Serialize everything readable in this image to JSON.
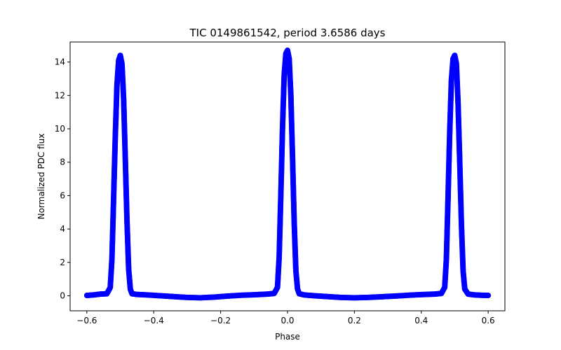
{
  "chart_data": {
    "type": "scatter",
    "title": "TIC 0149861542, period 3.6586 days",
    "xlabel": "Phase",
    "ylabel": "Normalized PDC flux",
    "xlim": [
      -0.65,
      0.65
    ],
    "ylim": [
      -0.9,
      15.2
    ],
    "x_ticks": [
      -0.6,
      -0.4,
      -0.2,
      0.0,
      0.2,
      0.4,
      0.6
    ],
    "x_tick_labels": [
      "−0.6",
      "−0.4",
      "−0.2",
      "0.0",
      "0.2",
      "0.4",
      "0.6"
    ],
    "y_ticks": [
      0,
      2,
      4,
      6,
      8,
      10,
      12,
      14
    ],
    "y_tick_labels": [
      "0",
      "2",
      "4",
      "6",
      "8",
      "10",
      "12",
      "14"
    ],
    "grid": false,
    "marker_color": "#0000ff",
    "series": [
      {
        "x": [
          -0.6,
          -0.58,
          -0.56,
          -0.54,
          -0.53,
          -0.525,
          -0.52,
          -0.515,
          -0.51,
          -0.505,
          -0.5,
          -0.495,
          -0.49,
          -0.485,
          -0.48,
          -0.475,
          -0.47,
          -0.465,
          -0.45,
          -0.42,
          -0.38,
          -0.34,
          -0.3,
          -0.26,
          -0.22,
          -0.18,
          -0.14,
          -0.1,
          -0.06,
          -0.04,
          -0.03,
          -0.025,
          -0.02,
          -0.015,
          -0.01,
          -0.005,
          0.0,
          0.005,
          0.01,
          0.015,
          0.02,
          0.025,
          0.03,
          0.035,
          0.05,
          0.08,
          0.12,
          0.16,
          0.2,
          0.24,
          0.28,
          0.32,
          0.36,
          0.4,
          0.44,
          0.46,
          0.47,
          0.475,
          0.48,
          0.485,
          0.49,
          0.495,
          0.5,
          0.505,
          0.51,
          0.515,
          0.52,
          0.525,
          0.53,
          0.54,
          0.56,
          0.58,
          0.6
        ],
        "y": [
          0.02,
          0.05,
          0.1,
          0.12,
          0.5,
          2.2,
          5.8,
          9.5,
          12.6,
          14.1,
          14.4,
          13.9,
          11.8,
          8.2,
          4.5,
          1.6,
          0.4,
          0.12,
          0.08,
          0.05,
          0.0,
          -0.05,
          -0.1,
          -0.12,
          -0.08,
          -0.02,
          0.03,
          0.06,
          0.1,
          0.14,
          0.5,
          2.3,
          6.0,
          10.0,
          13.2,
          14.5,
          14.7,
          14.2,
          12.0,
          8.3,
          4.4,
          1.5,
          0.4,
          0.12,
          0.05,
          0.0,
          -0.05,
          -0.1,
          -0.12,
          -0.1,
          -0.06,
          -0.02,
          0.03,
          0.07,
          0.1,
          0.14,
          0.5,
          2.2,
          5.9,
          9.8,
          12.9,
          14.2,
          14.4,
          13.9,
          11.5,
          8.0,
          4.3,
          1.5,
          0.4,
          0.1,
          0.05,
          0.03,
          0.02
        ]
      }
    ]
  }
}
